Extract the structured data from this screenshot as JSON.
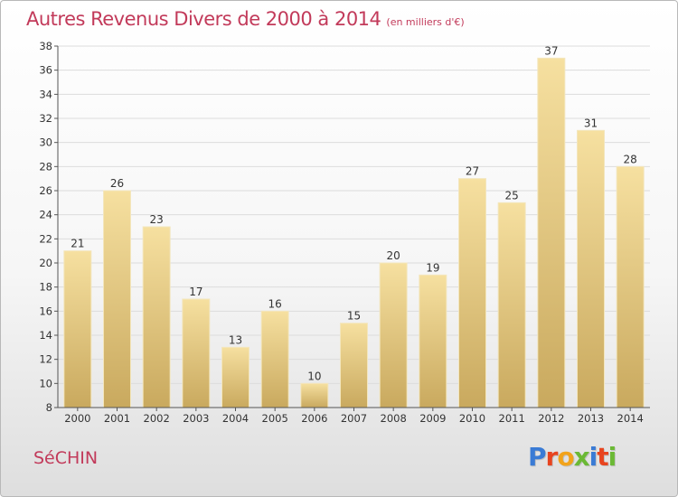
{
  "title": "Autres Revenus Divers de 2000 à 2014",
  "subtitle": "(en milliers d'€)",
  "commune": "SéCHIN",
  "logo_text": "Proxiti",
  "colors": {
    "title": "#c23a5a",
    "bar_top": "#f6e0a0",
    "bar_bottom": "#c9a95e",
    "grid": "#dcdcdc",
    "logo_letters": [
      "#3a7bd5",
      "#e8441f",
      "#f2a31b",
      "#6bb935",
      "#3a7bd5",
      "#e8441f",
      "#6bb935"
    ]
  },
  "chart_data": {
    "type": "bar",
    "title": "Autres Revenus Divers de 2000 à 2014",
    "subtitle": "(en milliers d'€)",
    "categories": [
      "2000",
      "2001",
      "2002",
      "2003",
      "2004",
      "2005",
      "2006",
      "2007",
      "2008",
      "2009",
      "2010",
      "2011",
      "2012",
      "2013",
      "2014"
    ],
    "values": [
      21,
      26,
      23,
      17,
      13,
      16,
      10,
      15,
      20,
      19,
      27,
      25,
      37,
      31,
      28
    ],
    "ylim": [
      8,
      38
    ],
    "yticks": [
      8,
      10,
      12,
      14,
      16,
      18,
      20,
      22,
      24,
      26,
      28,
      30,
      32,
      34,
      36,
      38
    ],
    "grid": true,
    "legend": false
  }
}
